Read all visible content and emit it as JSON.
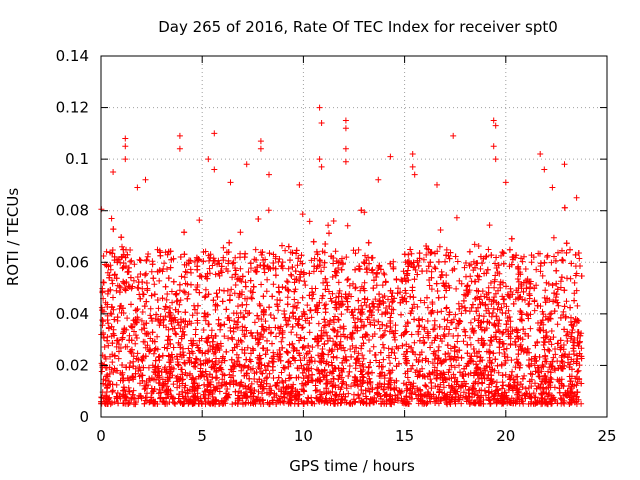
{
  "chart_data": {
    "type": "scatter",
    "title": "Day 265 of 2016, Rate Of TEC Index for receiver spt0",
    "xlabel": "GPS time / hours",
    "ylabel": "ROTI / TECUs",
    "xlim": [
      0,
      25
    ],
    "ylim": [
      0,
      0.14
    ],
    "xticks": [
      0,
      5,
      10,
      15,
      20,
      25
    ],
    "xtick_labels": [
      "0",
      "5",
      "10",
      "15",
      "20",
      "25"
    ],
    "yticks": [
      0,
      0.02,
      0.04,
      0.06,
      0.08,
      0.1,
      0.12,
      0.14
    ],
    "ytick_labels": [
      "0",
      "0.02",
      "0.04",
      "0.06",
      "0.08",
      "0.1",
      "0.12",
      "0.14"
    ],
    "grid": true,
    "legend": "none",
    "marker": "plus",
    "color": "#ff0000",
    "series": [
      {
        "name": "ROTI",
        "x_range": [
          0,
          23.75
        ],
        "typical_range": [
          0.005,
          0.065
        ],
        "points": [
          {
            "x": 1.2,
            "y": 0.108
          },
          {
            "x": 1.2,
            "y": 0.105
          },
          {
            "x": 1.2,
            "y": 0.1
          },
          {
            "x": 0.6,
            "y": 0.095
          },
          {
            "x": 1.8,
            "y": 0.089
          },
          {
            "x": 3.9,
            "y": 0.109
          },
          {
            "x": 3.9,
            "y": 0.104
          },
          {
            "x": 5.6,
            "y": 0.11
          },
          {
            "x": 5.3,
            "y": 0.1
          },
          {
            "x": 5.6,
            "y": 0.096
          },
          {
            "x": 7.2,
            "y": 0.098
          },
          {
            "x": 7.9,
            "y": 0.107
          },
          {
            "x": 7.9,
            "y": 0.104
          },
          {
            "x": 8.3,
            "y": 0.094
          },
          {
            "x": 10.8,
            "y": 0.12
          },
          {
            "x": 10.9,
            "y": 0.114
          },
          {
            "x": 10.8,
            "y": 0.1
          },
          {
            "x": 10.9,
            "y": 0.097
          },
          {
            "x": 12.1,
            "y": 0.115
          },
          {
            "x": 12.1,
            "y": 0.112
          },
          {
            "x": 12.1,
            "y": 0.104
          },
          {
            "x": 12.1,
            "y": 0.099
          },
          {
            "x": 14.3,
            "y": 0.101
          },
          {
            "x": 15.4,
            "y": 0.102
          },
          {
            "x": 15.4,
            "y": 0.097
          },
          {
            "x": 15.5,
            "y": 0.094
          },
          {
            "x": 17.4,
            "y": 0.109
          },
          {
            "x": 19.4,
            "y": 0.115
          },
          {
            "x": 19.5,
            "y": 0.113
          },
          {
            "x": 19.4,
            "y": 0.105
          },
          {
            "x": 19.5,
            "y": 0.1
          },
          {
            "x": 21.7,
            "y": 0.102
          },
          {
            "x": 21.9,
            "y": 0.096
          },
          {
            "x": 22.9,
            "y": 0.098
          },
          {
            "x": 23.5,
            "y": 0.085
          },
          {
            "x": 2.2,
            "y": 0.092
          },
          {
            "x": 6.4,
            "y": 0.091
          },
          {
            "x": 9.8,
            "y": 0.09
          },
          {
            "x": 13.7,
            "y": 0.092
          },
          {
            "x": 16.6,
            "y": 0.09
          },
          {
            "x": 20.0,
            "y": 0.091
          },
          {
            "x": 22.3,
            "y": 0.089
          }
        ]
      }
    ]
  }
}
